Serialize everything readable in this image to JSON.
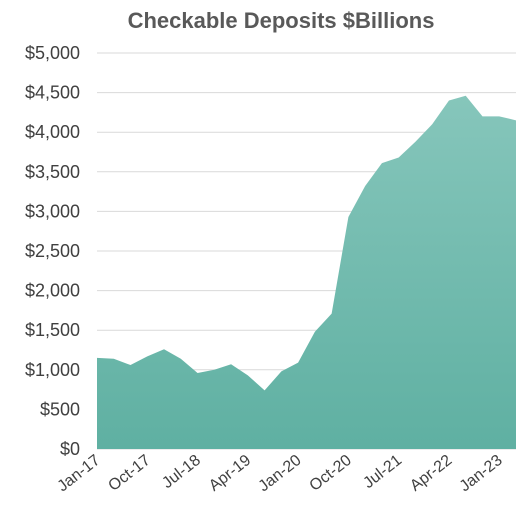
{
  "chart_data": {
    "type": "area",
    "title": "Checkable Deposits $Billions",
    "xlabel": "",
    "ylabel": "",
    "ylim": [
      0,
      5000
    ],
    "y_ticks": [
      "$0",
      "$500",
      "$1,000",
      "$1,500",
      "$2,000",
      "$2,500",
      "$3,000",
      "$3,500",
      "$4,000",
      "$4,500",
      "$5,000"
    ],
    "grid": true,
    "legend": "none",
    "color": "#5fb0a2",
    "x_tick_labels": [
      "Jan-17",
      "Oct-17",
      "Jul-18",
      "Apr-19",
      "Jan-20",
      "Oct-20",
      "Jul-21",
      "Apr-22",
      "Jan-23"
    ],
    "x": [
      "Jan-17",
      "Apr-17",
      "Jul-17",
      "Oct-17",
      "Jan-18",
      "Apr-18",
      "Jul-18",
      "Oct-18",
      "Jan-19",
      "Apr-19",
      "Jul-19",
      "Oct-19",
      "Jan-20",
      "Apr-20",
      "Jul-20",
      "Oct-20",
      "Jan-21",
      "Apr-21",
      "Jul-21",
      "Oct-21",
      "Jan-22",
      "Apr-22",
      "Jul-22",
      "Oct-22",
      "Jan-23",
      "Mar-23"
    ],
    "values": [
      1150,
      1140,
      1060,
      1170,
      1260,
      1140,
      960,
      1000,
      1070,
      930,
      740,
      980,
      1090,
      1480,
      1710,
      2930,
      3320,
      3610,
      3680,
      3880,
      4100,
      4400,
      4460,
      4200,
      4200,
      4150
    ]
  }
}
